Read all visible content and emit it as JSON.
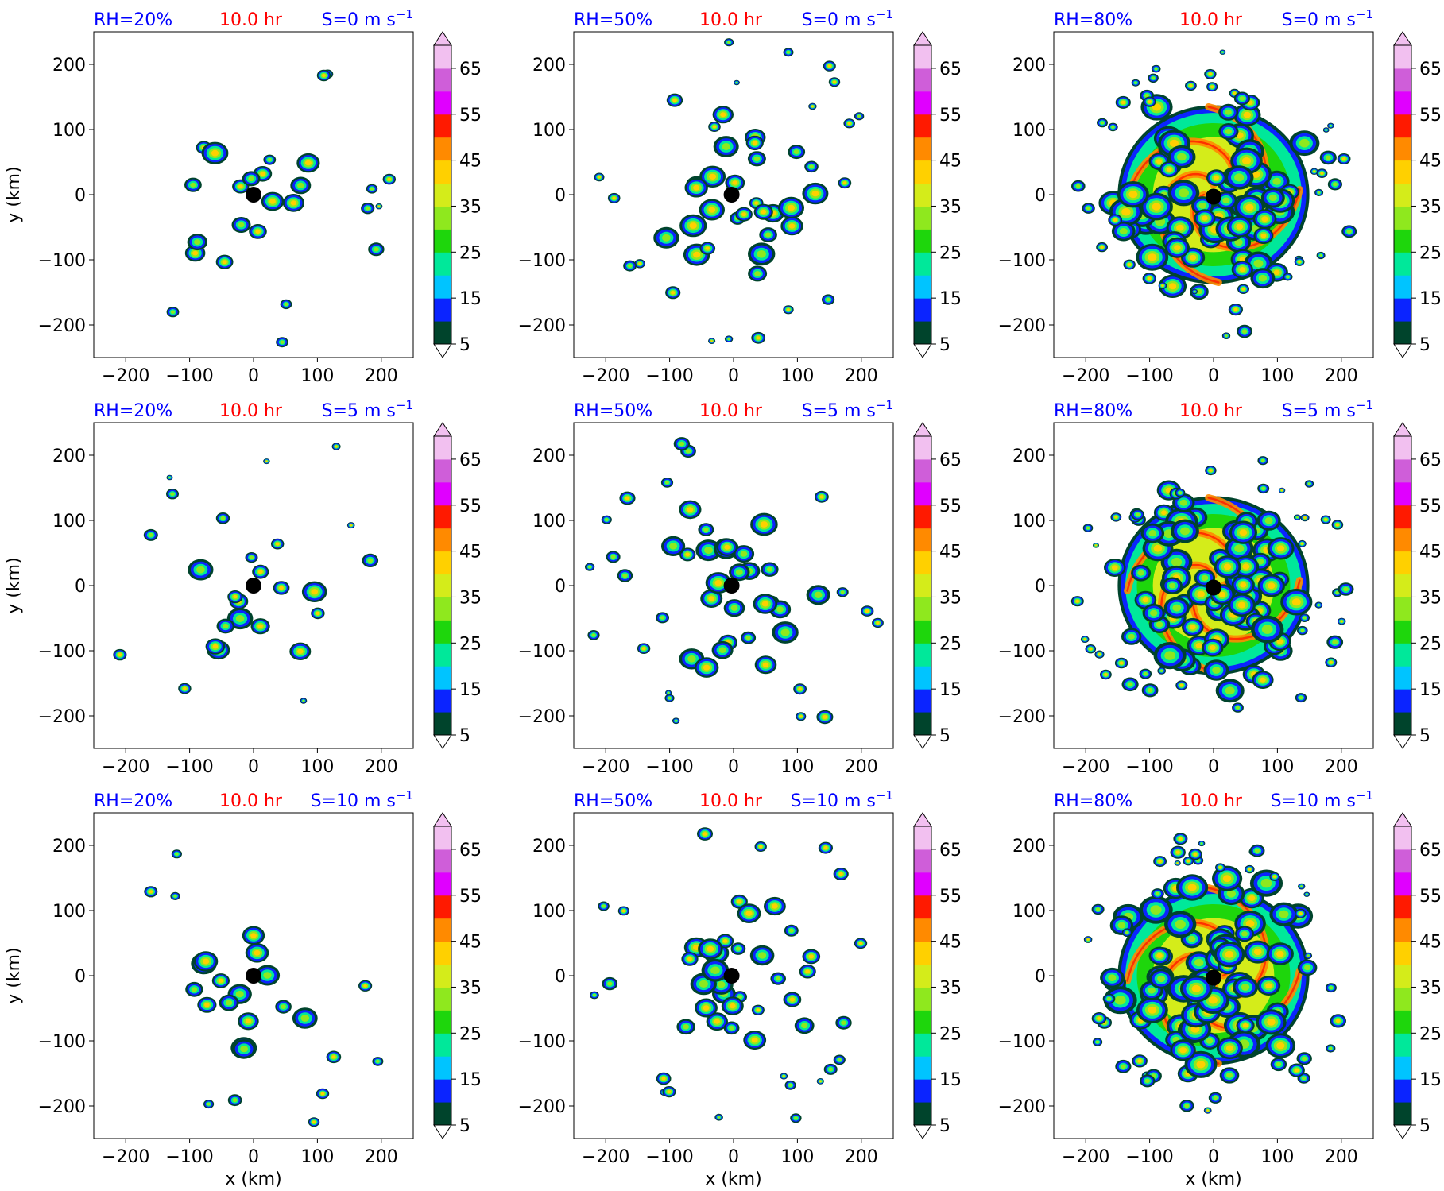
{
  "chart_data": {
    "type": "heatmap",
    "figure": {
      "time_label": "10.0 hr",
      "xlabel": "x (km)",
      "ylabel": "y (km)",
      "xlim": [
        -250,
        250
      ],
      "ylim": [
        -250,
        250
      ],
      "xticks": [
        -200,
        -100,
        0,
        100,
        200
      ],
      "yticks": [
        -200,
        -100,
        0,
        100,
        200
      ],
      "center_marker": "black dot at storm center",
      "colorbar": {
        "levels": [
          5,
          10,
          15,
          20,
          25,
          30,
          35,
          40,
          45,
          50,
          55,
          60,
          65,
          70
        ],
        "tick_labels": [
          5,
          15,
          25,
          35,
          45,
          55,
          65
        ],
        "extend": "both",
        "colors": [
          "#00442c",
          "#0b24ff",
          "#00c4ff",
          "#00e89a",
          "#1ed60c",
          "#8fe81e",
          "#d4ec1a",
          "#ffd000",
          "#ff8a00",
          "#ff1a00",
          "#e000ff",
          "#cf5ed9",
          "#f2c0f0"
        ],
        "under_color": "#ffffff",
        "over_color": "#f2c0f0"
      }
    },
    "panels": [
      {
        "row": 0,
        "col": 0,
        "rh_label": "RH=20%",
        "time_label": "10.0 hr",
        "shear_label": "S=0 m s",
        "shear_exp": "−1"
      },
      {
        "row": 0,
        "col": 1,
        "rh_label": "RH=50%",
        "time_label": "10.0 hr",
        "shear_label": "S=0 m s",
        "shear_exp": "−1"
      },
      {
        "row": 0,
        "col": 2,
        "rh_label": "RH=80%",
        "time_label": "10.0 hr",
        "shear_label": "S=0 m s",
        "shear_exp": "−1"
      },
      {
        "row": 1,
        "col": 0,
        "rh_label": "RH=20%",
        "time_label": "10.0 hr",
        "shear_label": "S=5 m s",
        "shear_exp": "−1"
      },
      {
        "row": 1,
        "col": 1,
        "rh_label": "RH=50%",
        "time_label": "10.0 hr",
        "shear_label": "S=5 m s",
        "shear_exp": "−1"
      },
      {
        "row": 1,
        "col": 2,
        "rh_label": "RH=80%",
        "time_label": "10.0 hr",
        "shear_label": "S=5 m s",
        "shear_exp": "−1"
      },
      {
        "row": 2,
        "col": 0,
        "rh_label": "RH=20%",
        "time_label": "10.0 hr",
        "shear_label": "S=10 m s",
        "shear_exp": "−1"
      },
      {
        "row": 2,
        "col": 1,
        "rh_label": "RH=50%",
        "time_label": "10.0 hr",
        "shear_label": "S=10 m s",
        "shear_exp": "−1"
      },
      {
        "row": 2,
        "col": 2,
        "rh_label": "RH=80%",
        "time_label": "10.0 hr",
        "shear_label": "S=10 m s",
        "shear_exp": "−1"
      }
    ]
  }
}
